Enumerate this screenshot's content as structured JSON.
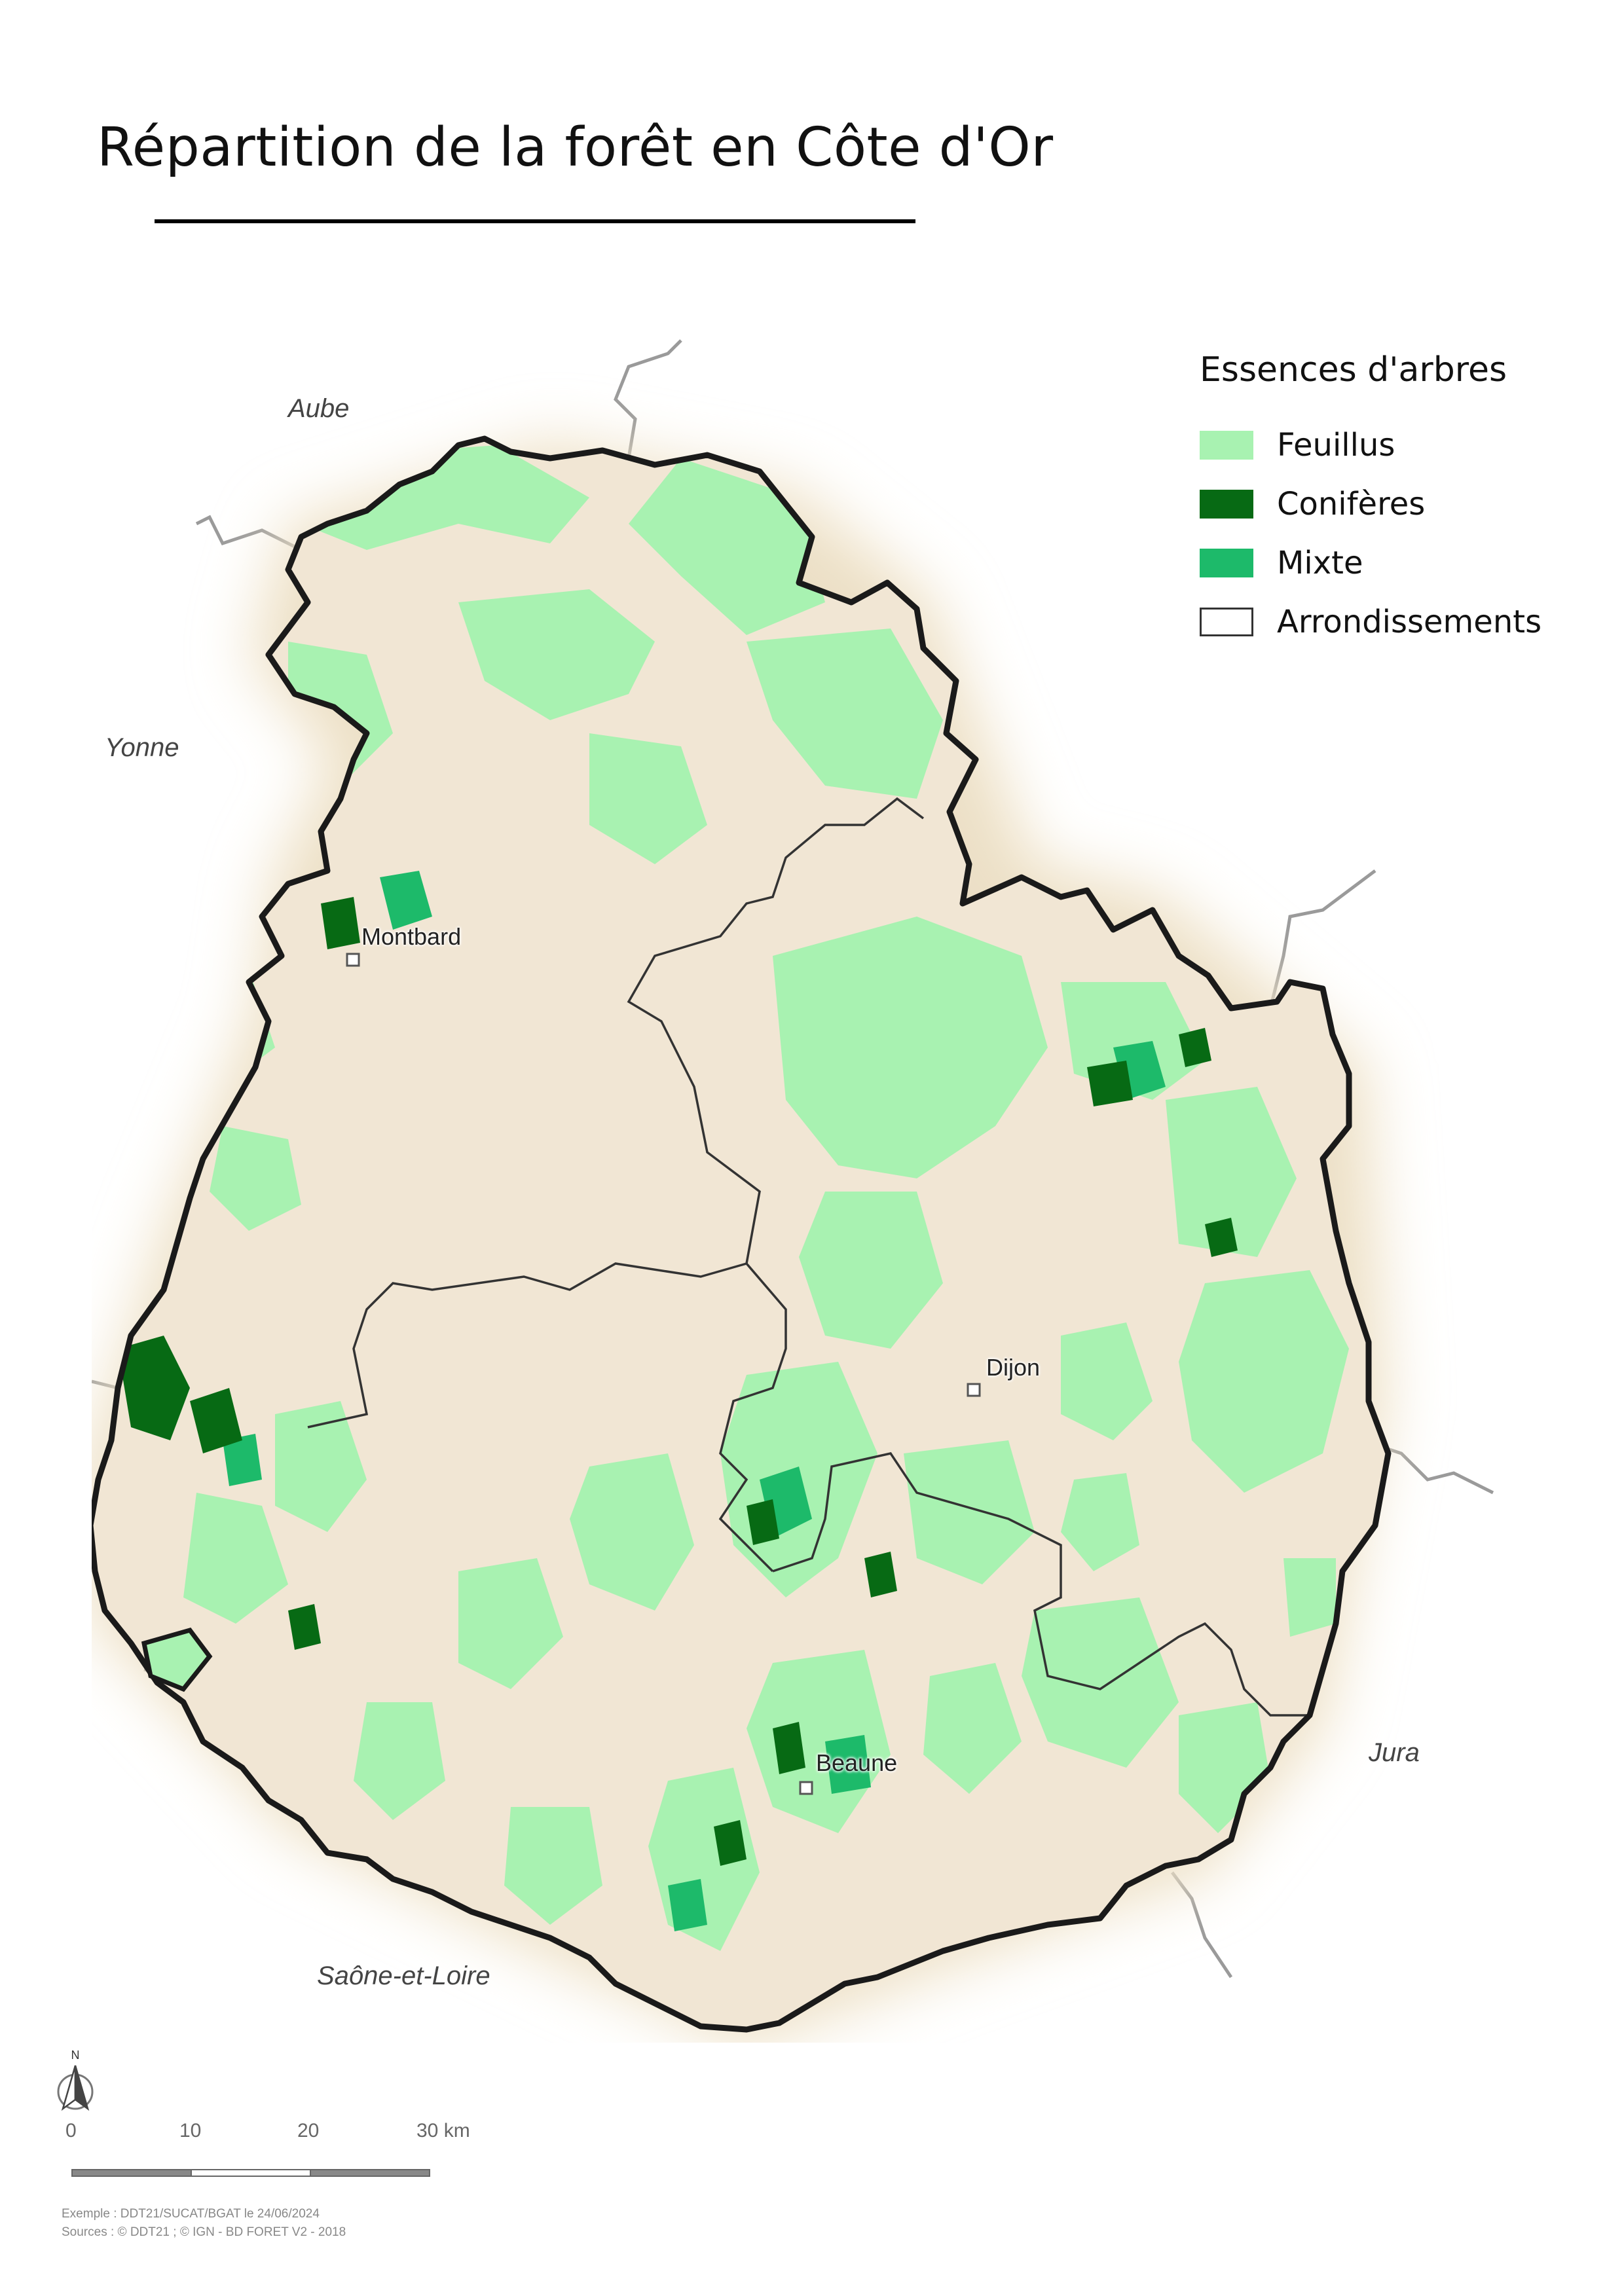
{
  "title": "Répartition de la forêt en Côte d'Or",
  "legend": {
    "title": "Essences d'arbres",
    "items": [
      {
        "label": "Feuillus",
        "color": "#a8f2b1",
        "kind": "fill"
      },
      {
        "label": "Conifères",
        "color": "#076a14",
        "kind": "fill"
      },
      {
        "label": "Mixte",
        "color": "#1dba6a",
        "kind": "fill"
      },
      {
        "label": "Arrondissements",
        "color": "#ffffff",
        "kind": "outline"
      }
    ]
  },
  "neighbors": {
    "aube": "Aube",
    "yonne": "Yonne",
    "jura": "Jura",
    "saone_et_loire": "Saône-et-Loire"
  },
  "cities": {
    "montbard": "Montbard",
    "dijon": "Dijon",
    "beaune": "Beaune"
  },
  "north_label": "N",
  "scalebar": {
    "ticks": [
      "0",
      "10",
      "20",
      "30 km"
    ]
  },
  "credits": {
    "line1": "Exemple : DDT21/SUCAT/BGAT le 24/06/2024",
    "line2": "Sources : © DDT21 ; © IGN - BD FORET V2 - 2018"
  },
  "colors": {
    "land": "#f1e6d4",
    "halo": "#ebdfc6",
    "department_border": "#1a1a1a",
    "arrondissement_border": "#333333",
    "neighbor_border": "#9a9a9a"
  }
}
